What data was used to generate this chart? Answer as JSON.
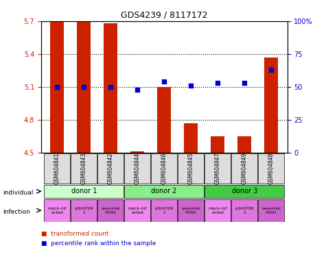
{
  "title": "GDS4239 / 8117172",
  "samples": [
    "GSM604841",
    "GSM604843",
    "GSM604842",
    "GSM604844",
    "GSM604846",
    "GSM604845",
    "GSM604847",
    "GSM604849",
    "GSM604848"
  ],
  "bar_values": [
    5.7,
    5.69,
    5.68,
    4.51,
    5.1,
    4.77,
    4.65,
    4.65,
    5.37
  ],
  "percentile_values": [
    50,
    50,
    50,
    48,
    54,
    51,
    53,
    53,
    63
  ],
  "ylim_left": [
    4.5,
    5.7
  ],
  "ylim_right": [
    0,
    100
  ],
  "yticks_left": [
    4.5,
    4.8,
    5.1,
    5.4,
    5.7
  ],
  "yticks_right": [
    0,
    25,
    50,
    75,
    100
  ],
  "bar_color": "#cc2200",
  "dot_color": "#0000cc",
  "grid_color": "#000000",
  "donors": [
    {
      "label": "donor 1",
      "start": 0,
      "end": 3,
      "color": "#ccffcc"
    },
    {
      "label": "donor 2",
      "start": 3,
      "end": 6,
      "color": "#88ee88"
    },
    {
      "label": "donor 3",
      "start": 6,
      "end": 9,
      "color": "#44cc44"
    }
  ],
  "infections": [
    {
      "label": "mock-inf\nected",
      "color": "#ee88ee"
    },
    {
      "label": "pdmH1N\n1",
      "color": "#dd77dd"
    },
    {
      "label": "seasonal\nH1N1",
      "color": "#cc66cc"
    },
    {
      "label": "mock-inf\nected",
      "color": "#ee88ee"
    },
    {
      "label": "pdmH1N\n1",
      "color": "#dd77dd"
    },
    {
      "label": "seasonal\nH1N1",
      "color": "#cc66cc"
    },
    {
      "label": "mock-inf\nected",
      "color": "#ee88ee"
    },
    {
      "label": "pdmH1N\n1",
      "color": "#dd77dd"
    },
    {
      "label": "seasonal\nH1N1",
      "color": "#cc66cc"
    }
  ],
  "legend_items": [
    {
      "color": "#cc2200",
      "label": "transformed count"
    },
    {
      "color": "#0000cc",
      "label": "percentile rank within the sample"
    }
  ],
  "background_color": "#ffffff",
  "plot_bg": "#ffffff",
  "bar_width": 0.5,
  "sample_bg_color": "#dddddd"
}
